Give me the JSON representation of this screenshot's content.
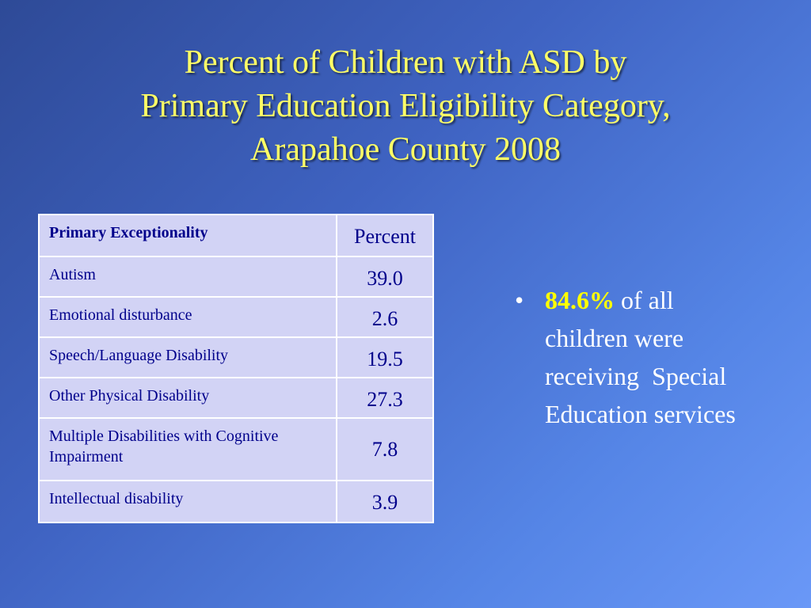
{
  "title": {
    "line1": "Percent of Children with ASD by",
    "line2": "Primary Education Eligibility Category,",
    "line3": "Arapahoe County 2008"
  },
  "table": {
    "header_category": "Primary Exceptionality",
    "header_value": "Percent",
    "rows": [
      {
        "category": "Autism",
        "percent": "39.0"
      },
      {
        "category": "Emotional disturbance",
        "percent": "2.6"
      },
      {
        "category": "Speech/Language Disability",
        "percent": "19.5"
      },
      {
        "category": "Other Physical Disability",
        "percent": "27.3"
      },
      {
        "category": "Multiple Disabilities with Cognitive Impairment",
        "percent": "7.8"
      },
      {
        "category": "Intellectual disability",
        "percent": "3.9"
      }
    ]
  },
  "bullet": {
    "symbol": "•",
    "highlight": "84.6%",
    "line1_rest": "of all",
    "line2": "children were",
    "line3": "receiving  Special",
    "line4": "Education services"
  },
  "colors": {
    "title": "#ffff66",
    "highlight": "#ffff00",
    "table_fill": "#d2d3f5",
    "table_text": "#00008b"
  }
}
